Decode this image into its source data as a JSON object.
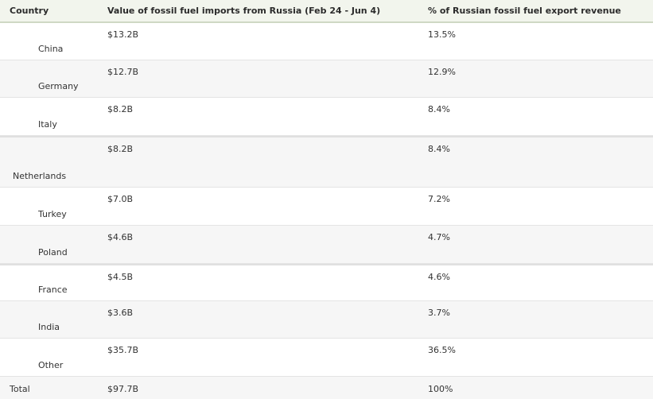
{
  "headers": {
    "country": "Country",
    "value": "Value of fossil fuel imports from Russia (Feb 24 - Jun 4)",
    "pct": "% of Russian fossil fuel export revenue"
  },
  "rows": [
    {
      "country": "China",
      "value": "$13.2B",
      "pct": "13.5%"
    },
    {
      "country": "Germany",
      "value": "$12.7B",
      "pct": "12.9%"
    },
    {
      "country": "Italy",
      "value": "$8.2B",
      "pct": "8.4%"
    },
    {
      "country": "Netherlands",
      "value": "$8.2B",
      "pct": "8.4%"
    },
    {
      "country": "Turkey",
      "value": "$7.0B",
      "pct": "7.2%"
    },
    {
      "country": "Poland",
      "value": "$4.6B",
      "pct": "4.7%"
    },
    {
      "country": "France",
      "value": "$4.5B",
      "pct": "4.6%"
    },
    {
      "country": "India",
      "value": "$3.6B",
      "pct": "3.7%"
    },
    {
      "country": "Other",
      "value": "$35.7B",
      "pct": "36.5%"
    }
  ],
  "total": {
    "country": "Total",
    "value": "$97.7B",
    "pct": "100%"
  }
}
